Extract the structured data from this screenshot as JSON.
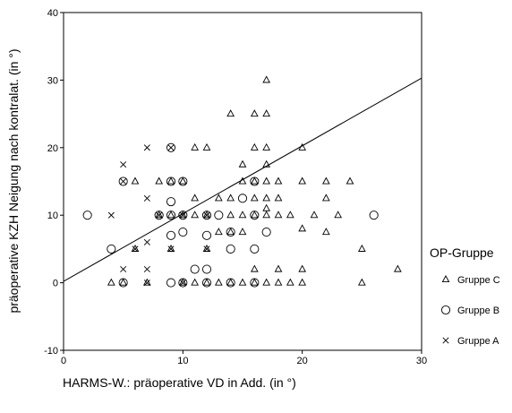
{
  "chart_data": {
    "type": "scatter",
    "xlabel": "HARMS-W.: präoperative VD in Add. (in °)",
    "ylabel": "präoperative KZH Neigung nach kontralat. (in °)",
    "xlim": [
      0,
      30
    ],
    "ylim": [
      -10,
      40
    ],
    "xticks": [
      0,
      10,
      20,
      30
    ],
    "yticks": [
      -10,
      0,
      10,
      20,
      30,
      40
    ],
    "legend": {
      "title": "OP-Gruppe",
      "position": "right",
      "entries": [
        "Gruppe C",
        "Gruppe B",
        "Gruppe A"
      ]
    },
    "series": [
      {
        "name": "Gruppe C",
        "marker": "triangle",
        "points": [
          [
            4,
            0
          ],
          [
            5,
            0
          ],
          [
            6,
            5
          ],
          [
            6,
            15
          ],
          [
            7,
            0
          ],
          [
            8,
            15
          ],
          [
            8,
            10
          ],
          [
            9,
            15
          ],
          [
            9,
            5
          ],
          [
            9,
            10
          ],
          [
            10,
            0
          ],
          [
            10,
            10
          ],
          [
            10,
            15
          ],
          [
            11,
            10
          ],
          [
            11,
            12.5
          ],
          [
            11,
            0
          ],
          [
            11,
            20
          ],
          [
            12,
            20
          ],
          [
            12,
            10
          ],
          [
            12,
            5
          ],
          [
            12,
            0
          ],
          [
            13,
            0
          ],
          [
            13,
            7.5
          ],
          [
            13,
            12.5
          ],
          [
            14,
            25
          ],
          [
            14,
            12.5
          ],
          [
            14,
            10
          ],
          [
            14,
            7.5
          ],
          [
            14,
            0
          ],
          [
            15,
            17.5
          ],
          [
            15,
            15
          ],
          [
            15,
            10
          ],
          [
            15,
            7.5
          ],
          [
            15,
            0
          ],
          [
            16,
            25
          ],
          [
            16,
            20
          ],
          [
            16,
            15
          ],
          [
            16,
            12.5
          ],
          [
            16,
            10
          ],
          [
            16,
            2
          ],
          [
            16,
            0
          ],
          [
            17,
            30
          ],
          [
            17,
            25
          ],
          [
            17,
            20
          ],
          [
            17,
            17.5
          ],
          [
            17,
            15
          ],
          [
            17,
            12.5
          ],
          [
            17,
            11
          ],
          [
            17,
            10
          ],
          [
            17,
            0
          ],
          [
            18,
            15
          ],
          [
            18,
            12.5
          ],
          [
            18,
            10
          ],
          [
            18,
            2
          ],
          [
            18,
            0
          ],
          [
            19,
            10
          ],
          [
            19,
            0
          ],
          [
            20,
            20
          ],
          [
            20,
            15
          ],
          [
            20,
            8
          ],
          [
            20,
            2
          ],
          [
            20,
            0
          ],
          [
            21,
            10
          ],
          [
            22,
            15
          ],
          [
            22,
            12.5
          ],
          [
            22,
            7.5
          ],
          [
            23,
            10
          ],
          [
            24,
            15
          ],
          [
            25,
            5
          ],
          [
            25,
            0
          ],
          [
            28,
            2
          ]
        ]
      },
      {
        "name": "Gruppe B",
        "marker": "circle",
        "points": [
          [
            2,
            10
          ],
          [
            4,
            5
          ],
          [
            5,
            15
          ],
          [
            5,
            0
          ],
          [
            8,
            10
          ],
          [
            9,
            20
          ],
          [
            9,
            15
          ],
          [
            9,
            12
          ],
          [
            9,
            10
          ],
          [
            9,
            7
          ],
          [
            9,
            0
          ],
          [
            10,
            15
          ],
          [
            10,
            10
          ],
          [
            10,
            7.5
          ],
          [
            10,
            0
          ],
          [
            11,
            2
          ],
          [
            12,
            10
          ],
          [
            12,
            7
          ],
          [
            12,
            2
          ],
          [
            12,
            0
          ],
          [
            13,
            10
          ],
          [
            14,
            7.5
          ],
          [
            14,
            5
          ],
          [
            14,
            0
          ],
          [
            15,
            12.5
          ],
          [
            16,
            15
          ],
          [
            16,
            10
          ],
          [
            16,
            5
          ],
          [
            16,
            0
          ],
          [
            17,
            7.5
          ],
          [
            26,
            10
          ]
        ]
      },
      {
        "name": "Gruppe A",
        "marker": "x",
        "points": [
          [
            4,
            10
          ],
          [
            5,
            17.5
          ],
          [
            5,
            15
          ],
          [
            5,
            2
          ],
          [
            6,
            5
          ],
          [
            7,
            20
          ],
          [
            7,
            12.5
          ],
          [
            7,
            6
          ],
          [
            7,
            2
          ],
          [
            7,
            0
          ],
          [
            8,
            10
          ],
          [
            9,
            20
          ],
          [
            9,
            5
          ],
          [
            10,
            10
          ],
          [
            10,
            0
          ],
          [
            12,
            10
          ],
          [
            12,
            5
          ]
        ]
      }
    ],
    "fit_line": {
      "x": [
        0,
        30
      ],
      "y": [
        0.2,
        30.3
      ]
    },
    "grid": false
  }
}
